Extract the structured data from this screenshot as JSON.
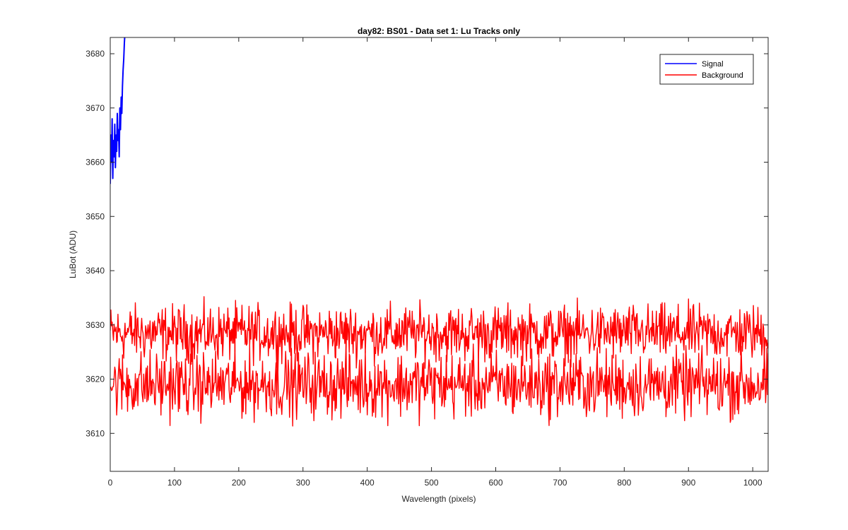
{
  "chart_data": {
    "type": "line",
    "title": "day82: BS01 - Data set 1: Lu Tracks only",
    "xlabel": "Wavelength (pixels)",
    "ylabel": "LuBot (ADU)",
    "xlim": [
      0,
      1024
    ],
    "ylim": [
      3603,
      3683
    ],
    "xticks": [
      0,
      100,
      200,
      300,
      400,
      500,
      600,
      700,
      800,
      900,
      1000
    ],
    "yticks": [
      3610,
      3620,
      3630,
      3640,
      3650,
      3660,
      3670,
      3680
    ],
    "grid": false,
    "legend_position": "top-right",
    "series": [
      {
        "name": "Signal",
        "color": "#0000ff",
        "x": [
          0,
          1,
          2,
          3,
          4,
          5,
          6,
          7,
          8,
          9,
          10,
          11,
          12,
          13,
          14,
          15,
          16,
          17,
          18,
          19,
          20,
          21,
          22,
          23,
          24
        ],
        "y": [
          3656,
          3665,
          3660,
          3668,
          3657,
          3664,
          3661,
          3667,
          3659,
          3665,
          3662,
          3669,
          3664,
          3666,
          3661,
          3670,
          3666,
          3672,
          3669,
          3674,
          3677,
          3679,
          3682,
          3684,
          3686
        ]
      },
      {
        "name": "Background",
        "color": "#ff0000",
        "x": [
          0,
          1024
        ],
        "y_mean": [
          3628.5,
          3628.5
        ],
        "noise_amplitude": 2.5,
        "note_band": "upper"
      },
      {
        "name": "",
        "color": "#ff0000",
        "x": [
          0,
          1024
        ],
        "y_mean": [
          3619,
          3619
        ],
        "noise_amplitude": 3.0,
        "note_band": "lower"
      }
    ]
  }
}
